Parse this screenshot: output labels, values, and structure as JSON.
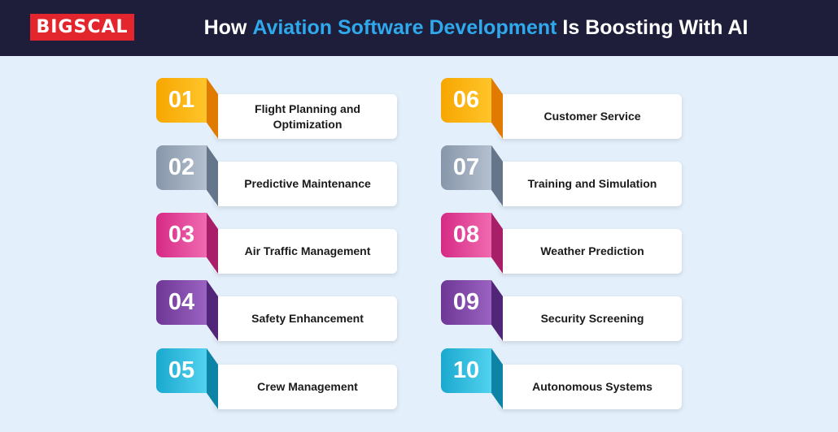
{
  "brand": {
    "logo_text": "BIGSCAL"
  },
  "header": {
    "title_prefix": "How ",
    "title_highlight": "Aviation Software Development",
    "title_suffix": " Is Boosting With AI"
  },
  "colors": {
    "header_bg": "#1e1e3a",
    "page_bg": "#e3effb",
    "highlight": "#2fa8ec",
    "logo_bg": "#e3262e"
  },
  "items": [
    {
      "number": "01",
      "label": "Flight Planning and Optimization",
      "badge_from": "#f7a600",
      "badge_to": "#ffc52a",
      "fold": "#e07a00"
    },
    {
      "number": "02",
      "label": "Predictive Maintenance",
      "badge_from": "#8797aa",
      "badge_to": "#b4c0cf",
      "fold": "#66768a"
    },
    {
      "number": "03",
      "label": "Air Traffic Management",
      "badge_from": "#d62a85",
      "badge_to": "#f06bb0",
      "fold": "#a81e69"
    },
    {
      "number": "04",
      "label": "Safety Enhancement",
      "badge_from": "#6e3796",
      "badge_to": "#9a63c2",
      "fold": "#512578"
    },
    {
      "number": "05",
      "label": "Crew Management",
      "badge_from": "#1aa9cf",
      "badge_to": "#52d2ef",
      "fold": "#0d84a6"
    },
    {
      "number": "06",
      "label": "Customer Service",
      "badge_from": "#f7a600",
      "badge_to": "#ffc52a",
      "fold": "#e07a00"
    },
    {
      "number": "07",
      "label": "Training and Simulation",
      "badge_from": "#8797aa",
      "badge_to": "#b4c0cf",
      "fold": "#66768a"
    },
    {
      "number": "08",
      "label": "Weather Prediction",
      "badge_from": "#d62a85",
      "badge_to": "#f06bb0",
      "fold": "#a81e69"
    },
    {
      "number": "09",
      "label": "Security Screening",
      "badge_from": "#6e3796",
      "badge_to": "#9a63c2",
      "fold": "#512578"
    },
    {
      "number": "10",
      "label": "Autonomous Systems",
      "badge_from": "#1aa9cf",
      "badge_to": "#52d2ef",
      "fold": "#0d84a6"
    }
  ]
}
